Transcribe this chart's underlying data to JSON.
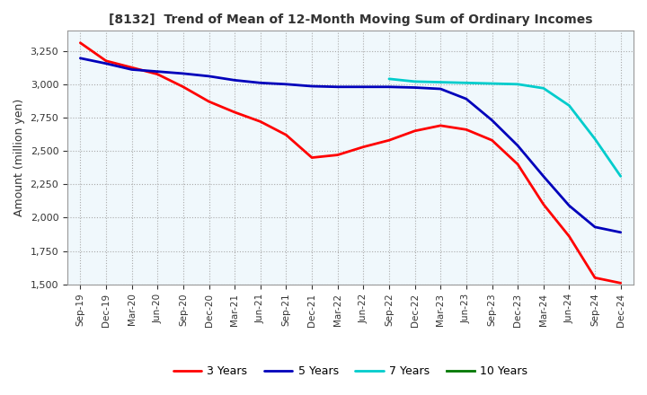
{
  "title": "[8132]  Trend of Mean of 12-Month Moving Sum of Ordinary Incomes",
  "ylabel": "Amount (million yen)",
  "ylim": [
    1500,
    3400
  ],
  "yticks": [
    1500,
    1750,
    2000,
    2250,
    2500,
    2750,
    3000,
    3250
  ],
  "legend_labels": [
    "3 Years",
    "5 Years",
    "7 Years",
    "10 Years"
  ],
  "line_colors": [
    "#ff0000",
    "#0000bb",
    "#00cccc",
    "#007700"
  ],
  "bg_color": "#f0f8fc",
  "x_labels": [
    "Sep-19",
    "Dec-19",
    "Mar-20",
    "Jun-20",
    "Sep-20",
    "Dec-20",
    "Mar-21",
    "Jun-21",
    "Sep-21",
    "Dec-21",
    "Mar-22",
    "Jun-22",
    "Sep-22",
    "Dec-22",
    "Mar-23",
    "Jun-23",
    "Sep-23",
    "Dec-23",
    "Mar-24",
    "Jun-24",
    "Sep-24",
    "Dec-24"
  ],
  "series_3yr": [
    3310,
    3175,
    3125,
    3075,
    2980,
    2870,
    2790,
    2720,
    2620,
    2450,
    2470,
    2530,
    2580,
    2650,
    2690,
    2660,
    2580,
    2400,
    2100,
    1860,
    1550,
    1510
  ],
  "series_5yr": [
    3195,
    3155,
    3110,
    3095,
    3080,
    3060,
    3030,
    3010,
    3000,
    2985,
    2980,
    2980,
    2980,
    2975,
    2965,
    2890,
    2730,
    2540,
    2310,
    2090,
    1930,
    1890
  ],
  "series_7yr": [
    null,
    null,
    null,
    null,
    null,
    null,
    null,
    null,
    null,
    null,
    null,
    null,
    3040,
    3020,
    3015,
    3010,
    3005,
    3000,
    2970,
    2840,
    2590,
    2310
  ],
  "series_10yr": [
    null,
    null,
    null,
    null,
    null,
    null,
    null,
    null,
    null,
    null,
    null,
    null,
    null,
    null,
    null,
    null,
    null,
    null,
    null,
    null,
    null,
    null
  ]
}
